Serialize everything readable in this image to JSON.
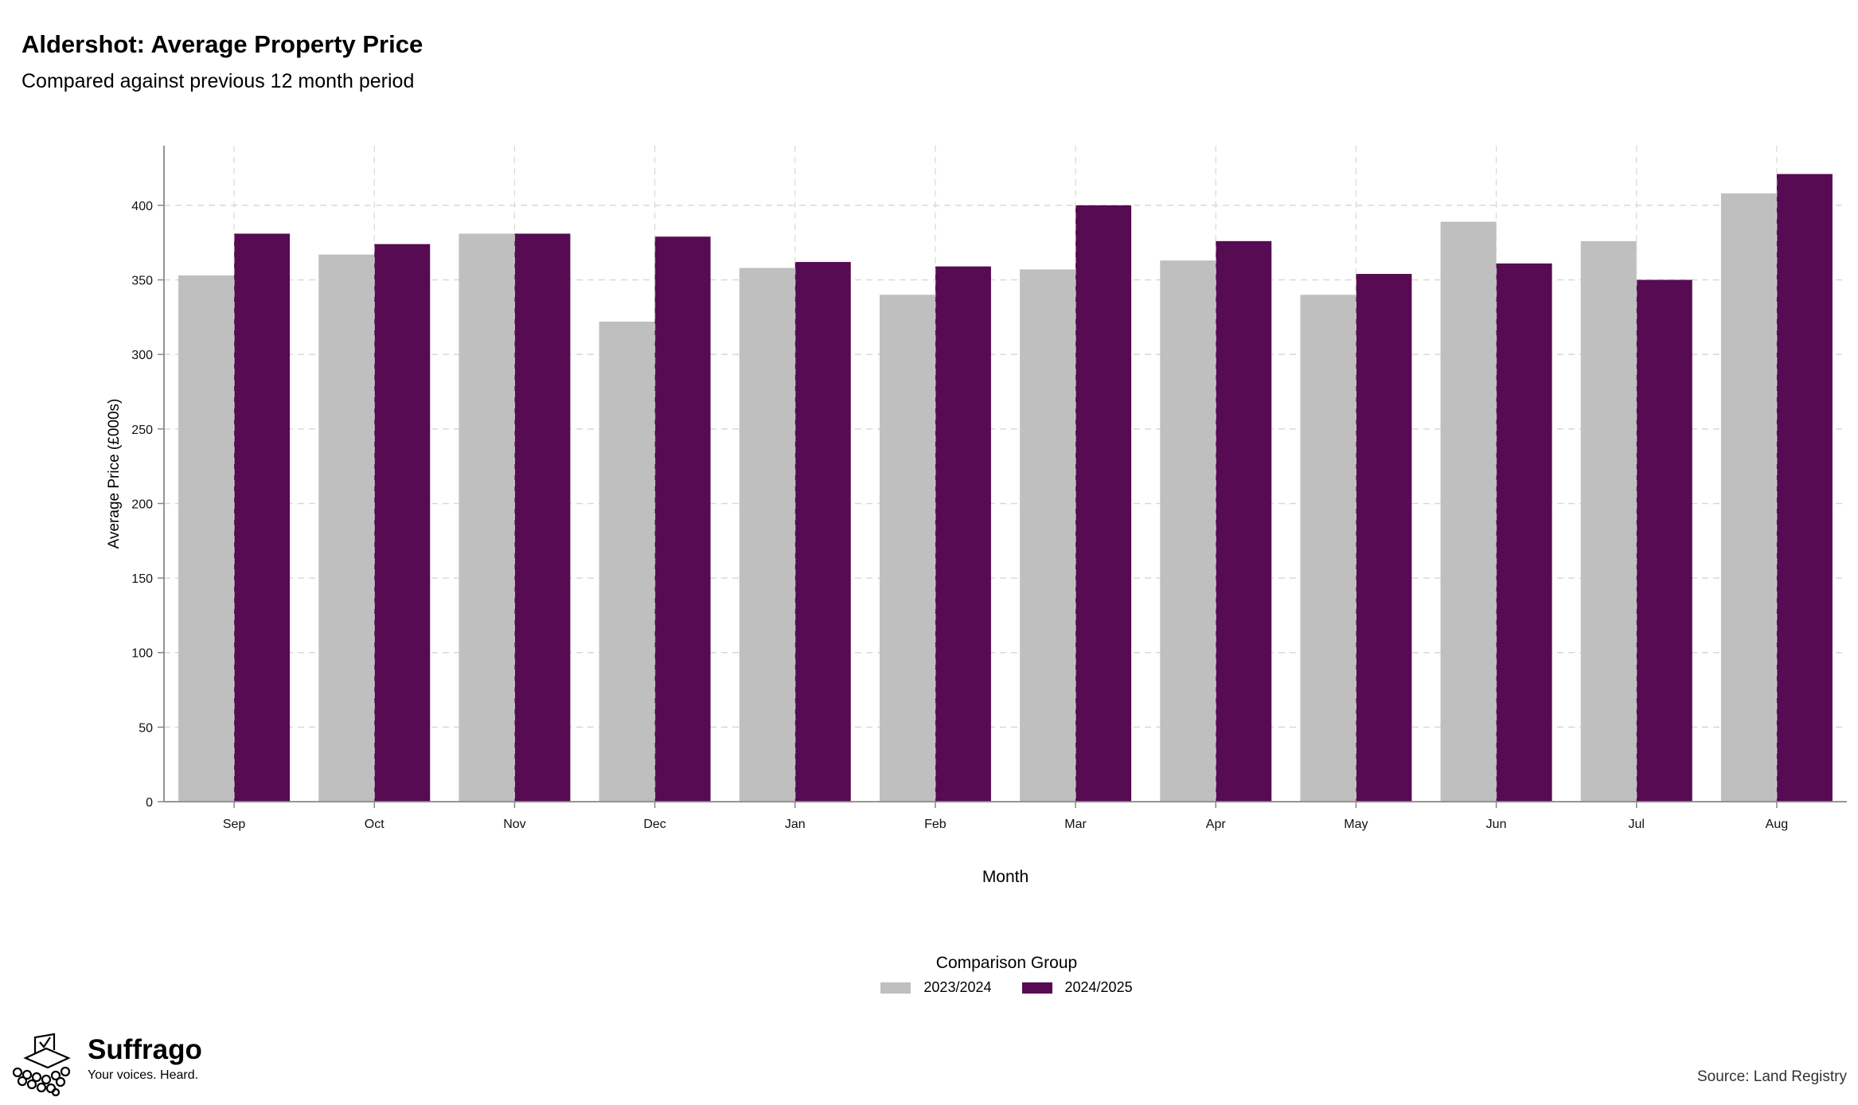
{
  "header": {
    "title": "Aldershot: Average Property Price",
    "subtitle": "Compared against previous 12 month period"
  },
  "chart_data": {
    "type": "bar",
    "title": "Aldershot: Average Property Price",
    "subtitle": "Compared against previous 12 month period",
    "xlabel": "Month",
    "ylabel": "Average Price (£000s)",
    "categories": [
      "Sep",
      "Oct",
      "Nov",
      "Dec",
      "Jan",
      "Feb",
      "Mar",
      "Apr",
      "May",
      "Jun",
      "Jul",
      "Aug"
    ],
    "ylim": [
      0,
      440
    ],
    "yticks": [
      0,
      50,
      100,
      150,
      200,
      250,
      300,
      350,
      400
    ],
    "grid": true,
    "legend_title": "Comparison Group",
    "legend_position": "bottom",
    "series": [
      {
        "name": "2023/2024",
        "color": "#bfbfbf",
        "values": [
          353,
          367,
          381,
          322,
          358,
          340,
          357,
          363,
          340,
          389,
          376,
          408
        ]
      },
      {
        "name": "2024/2025",
        "color": "#560b52",
        "values": [
          381,
          374,
          381,
          379,
          362,
          359,
          400,
          376,
          354,
          361,
          350,
          421
        ]
      }
    ]
  },
  "brand": {
    "name": "Suffrago",
    "tagline": "Your voices. Heard.",
    "logo_icon": "ballot-box-icon"
  },
  "footer": {
    "source": "Source: Land Registry"
  }
}
